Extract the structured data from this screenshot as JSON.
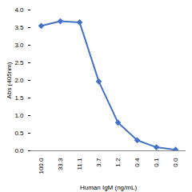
{
  "chart_data": {
    "type": "line",
    "x_label": "Human IgM (ng/mL)",
    "y_label": "Abs (405nm)",
    "categories": [
      "100.0",
      "33.3",
      "11.1",
      "3.7",
      "1.2",
      "0.4",
      "0.1",
      "0.0"
    ],
    "values": [
      3.55,
      3.68,
      3.65,
      1.97,
      0.8,
      0.3,
      0.1,
      0.03
    ],
    "color": "#4472c4",
    "marker": "diamond",
    "ylim": [
      0,
      4
    ],
    "yticks": [
      0,
      0.5,
      1,
      1.5,
      2,
      2.5,
      3,
      3.5,
      4
    ],
    "grid": false
  }
}
